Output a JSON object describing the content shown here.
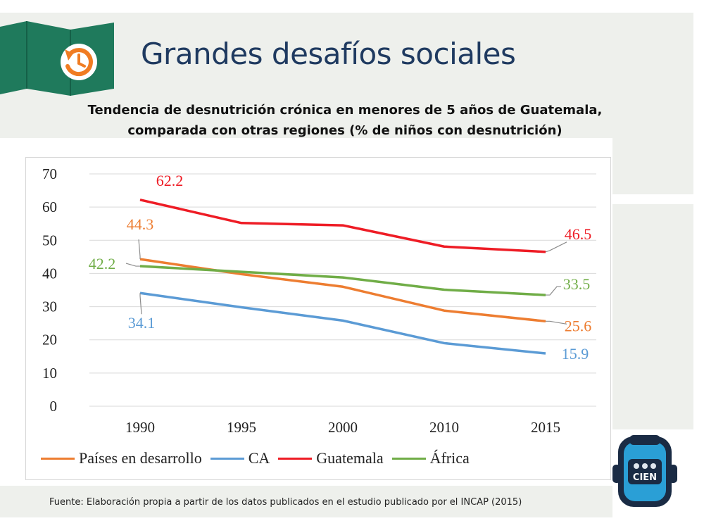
{
  "slide": {
    "title": "Grandes desafíos sociales",
    "subtitle_line1": "Tendencia de desnutrición crónica en menores de 5 años de Guatemala,",
    "subtitle_line2": "comparada con otras regiones (% de niños con desnutrición)",
    "footer": "Fuente: Elaboración propia a partir de los datos publicados en el estudio publicado por el INCAP (2015)",
    "logo_text": "CIEN"
  },
  "colors": {
    "title": "#1f3a60",
    "flag": "#1f7a5c",
    "flag_icon": "#f07c22",
    "paises": "#ed7d31",
    "ca": "#5b9bd5",
    "guatemala": "#ee1c25",
    "africa": "#70ad47"
  },
  "chart_data": {
    "type": "line",
    "title": "",
    "xlabel": "",
    "ylabel": "",
    "categories": [
      "1990",
      "1995",
      "2000",
      "2010",
      "2015"
    ],
    "ylim": [
      0,
      70
    ],
    "yticks": [
      0,
      10,
      20,
      30,
      40,
      50,
      60,
      70
    ],
    "grid": true,
    "legend_position": "bottom",
    "series": [
      {
        "name": "Países en desarrollo",
        "color": "#ed7d31",
        "values": [
          44.3,
          39.8,
          36,
          28.8,
          25.6
        ],
        "labels": {
          "start": "44.3",
          "end": "25.6"
        }
      },
      {
        "name": "CA",
        "color": "#5b9bd5",
        "values": [
          34.1,
          29.8,
          25.8,
          19,
          15.9
        ],
        "labels": {
          "start": "34.1",
          "end": "15.9"
        }
      },
      {
        "name": "Guatemala",
        "color": "#ee1c25",
        "values": [
          62.2,
          55.2,
          54.5,
          48.1,
          46.5
        ],
        "labels": {
          "start": "62.2",
          "end": "46.5"
        }
      },
      {
        "name": "África",
        "color": "#70ad47",
        "values": [
          42.2,
          40.5,
          38.8,
          35.1,
          33.5
        ],
        "labels": {
          "start": "42.2",
          "end": "33.5"
        }
      }
    ]
  }
}
